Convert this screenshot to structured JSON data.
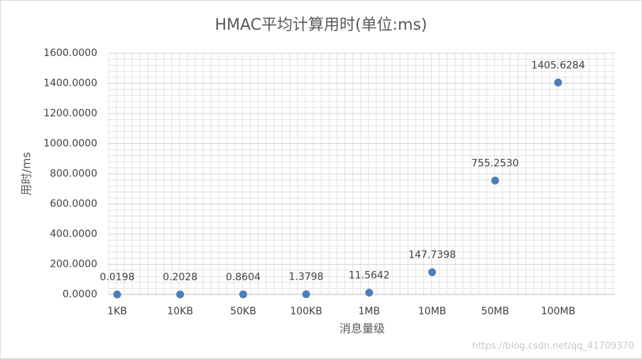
{
  "chart_data": {
    "type": "scatter",
    "title": "HMAC平均计算用时(单位:ms)",
    "x_label": "消息量级",
    "y_label": "用时/ms",
    "categories": [
      "1KB",
      "10KB",
      "50KB",
      "100KB",
      "1MB",
      "10MB",
      "50MB",
      "100MB"
    ],
    "values": [
      0.0198,
      0.2028,
      0.8604,
      1.3798,
      11.5642,
      147.7398,
      755.253,
      1405.6284
    ],
    "value_labels": [
      "0.0198",
      "0.2028",
      "0.8604",
      "1.3798",
      "11.5642",
      "147.7398",
      "755.2530",
      "1405.6284"
    ],
    "color": "#4a7ebb",
    "ylim": [
      0,
      1600
    ],
    "yticks": [
      {
        "value": 0,
        "label": "0.0000"
      },
      {
        "value": 200,
        "label": "200.0000"
      },
      {
        "value": 400,
        "label": "400.0000"
      },
      {
        "value": 600,
        "label": "600.0000"
      },
      {
        "value": 800,
        "label": "800.0000"
      },
      {
        "value": 1000,
        "label": "1000.0000"
      },
      {
        "value": 1200,
        "label": "1200.0000"
      },
      {
        "value": 1400,
        "label": "1400.0000"
      },
      {
        "value": 1600,
        "label": "1600.0000"
      }
    ],
    "grid": true,
    "minor_grid": true,
    "watermark": "https://blog.csdn.net/qq_41709370"
  }
}
